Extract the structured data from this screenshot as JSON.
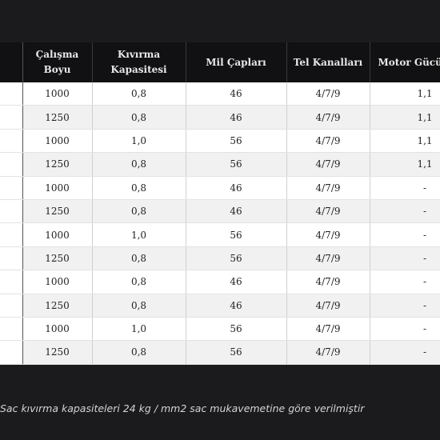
{
  "table": {
    "headers": [
      "",
      "Çalışma Boyu",
      "Kıvırma Kapasitesi",
      "Mil Çapları",
      "Tel Kanalları",
      "Motor Gücü"
    ],
    "rows": [
      [
        "",
        "1000",
        "0,8",
        "46",
        "4/7/9",
        "1,1"
      ],
      [
        "",
        "1250",
        "0,8",
        "46",
        "4/7/9",
        "1,1"
      ],
      [
        "",
        "1000",
        "1,0",
        "56",
        "4/7/9",
        "1,1"
      ],
      [
        "",
        "1250",
        "0,8",
        "56",
        "4/7/9",
        "1,1"
      ],
      [
        "",
        "1000",
        "0,8",
        "46",
        "4/7/9",
        "-"
      ],
      [
        "",
        "1250",
        "0,8",
        "46",
        "4/7/9",
        "-"
      ],
      [
        "",
        "1000",
        "1,0",
        "56",
        "4/7/9",
        "-"
      ],
      [
        "",
        "1250",
        "0,8",
        "56",
        "4/7/9",
        "-"
      ],
      [
        "",
        "1000",
        "0,8",
        "46",
        "4/7/9",
        "-"
      ],
      [
        "",
        "1250",
        "0,8",
        "46",
        "4/7/9",
        "-"
      ],
      [
        "",
        "1000",
        "1,0",
        "56",
        "4/7/9",
        "-"
      ],
      [
        "",
        "1250",
        "0,8",
        "56",
        "4/7/9",
        "-"
      ]
    ]
  },
  "note": "Sac kıvırma kapasiteleri 24 kg / mm2 sac mukavemetine göre verilmiştir"
}
